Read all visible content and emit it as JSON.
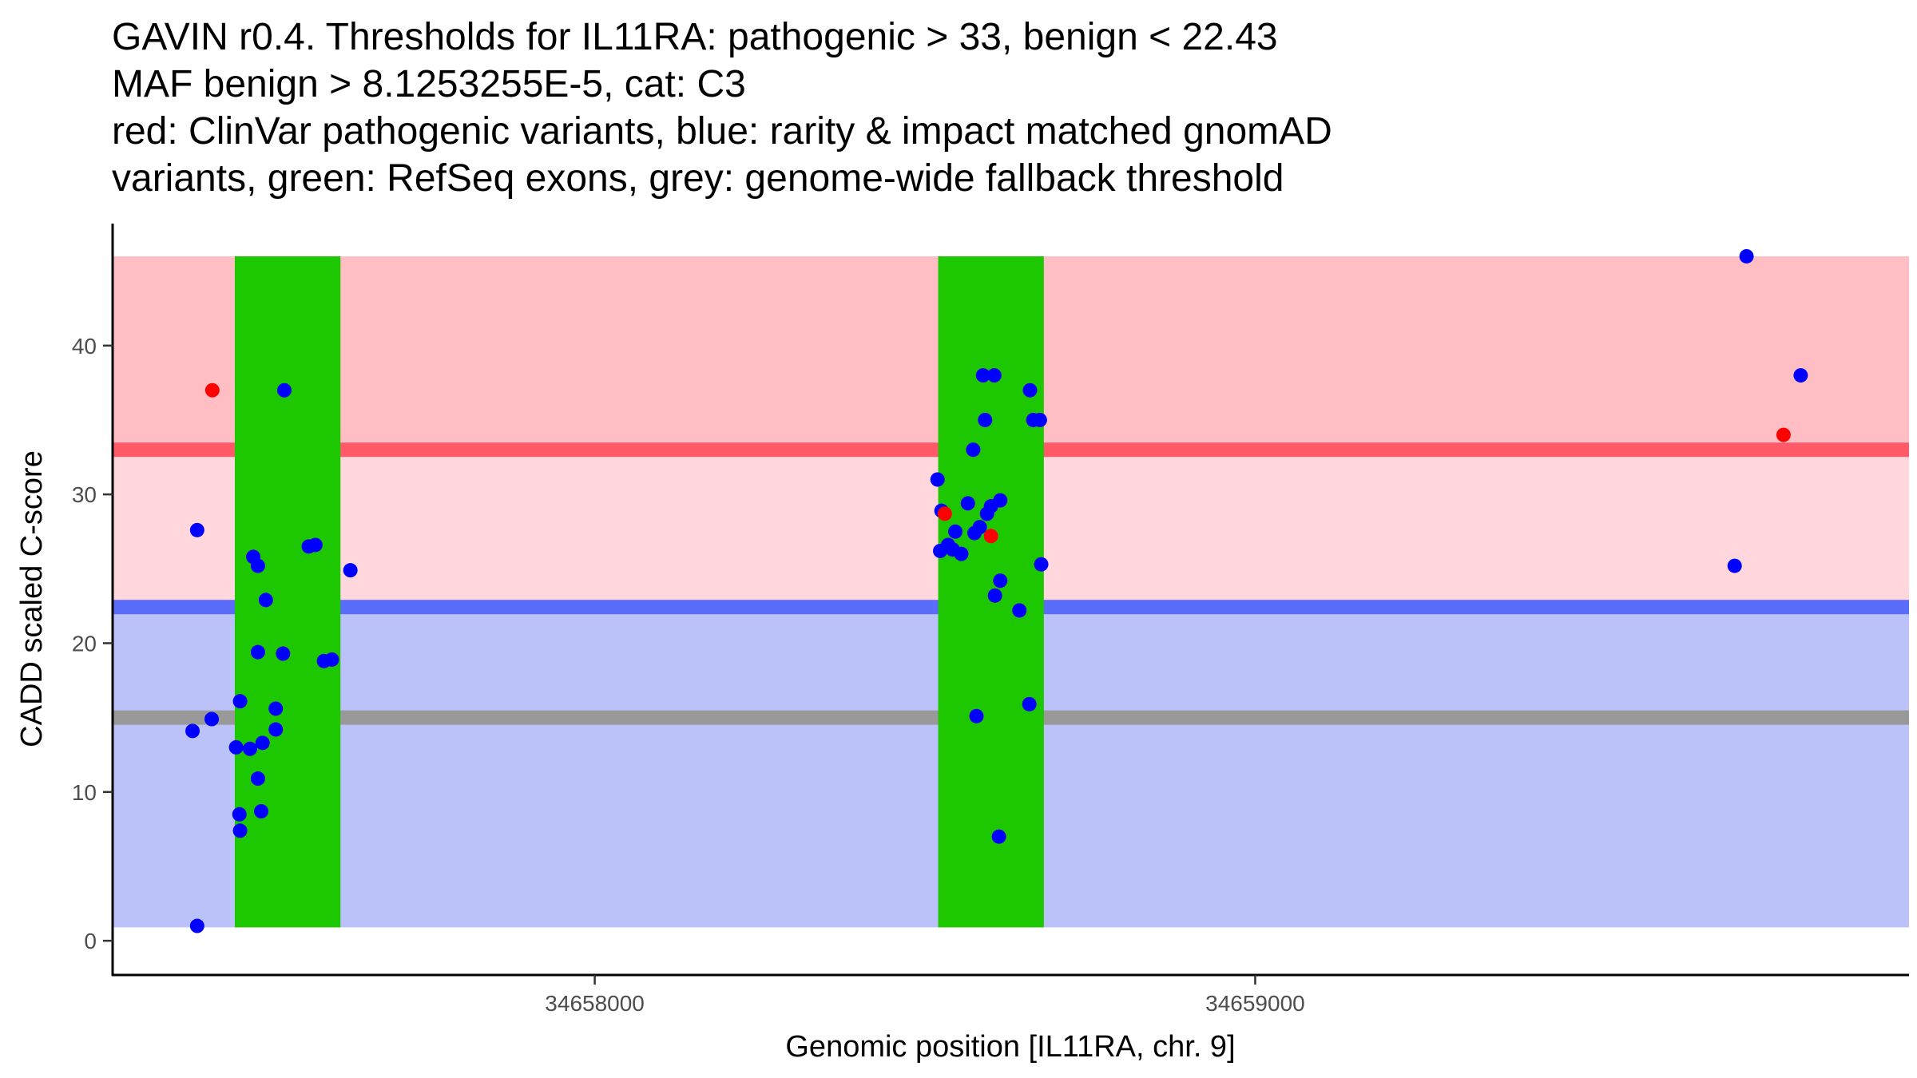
{
  "chart_data": {
    "type": "scatter",
    "title_lines": [
      "GAVIN r0.4. Thresholds for IL11RA: pathogenic > 33, benign < 22.43",
      "MAF benign > 8.1253255E-5, cat: C3",
      "red: ClinVar pathogenic variants, blue: rarity & impact matched gnomAD",
      "variants, green: RefSeq exons, grey: genome-wide fallback threshold"
    ],
    "xlabel": "Genomic position [IL11RA, chr. 9]",
    "ylabel": "CADD scaled C-score",
    "xlim": [
      34657270,
      34659990
    ],
    "ylim": [
      -2.3,
      48.2
    ],
    "x_ticks": [
      {
        "value": 34658000,
        "label": "34658000"
      },
      {
        "value": 34659000,
        "label": "34659000"
      }
    ],
    "y_ticks": [
      {
        "value": 0,
        "label": "0"
      },
      {
        "value": 10,
        "label": "10"
      },
      {
        "value": 20,
        "label": "20"
      },
      {
        "value": 30,
        "label": "30"
      },
      {
        "value": 40,
        "label": "40"
      }
    ],
    "bands": [
      {
        "name": "pathogenic-zone",
        "y0": 33,
        "y1": 46,
        "color": "#ffbec4"
      },
      {
        "name": "gap-zone",
        "y0": 22.43,
        "y1": 33,
        "color": "#ffd7dc"
      },
      {
        "name": "benign-zone",
        "y0": 0.9,
        "y1": 22.43,
        "color": "#bbc2fa"
      }
    ],
    "exons": [
      {
        "x0": 34657455,
        "x1": 34657615,
        "y0": 0.9,
        "y1": 46,
        "color": "#1ec800"
      },
      {
        "x0": 34658520,
        "x1": 34658680,
        "y0": 0.9,
        "y1": 46,
        "color": "#1ec800"
      }
    ],
    "threshold_lines": [
      {
        "name": "pathogenic-threshold",
        "y": 33,
        "color": "#ff5a6a"
      },
      {
        "name": "benign-threshold",
        "y": 22.43,
        "color": "#5a6dfa"
      },
      {
        "name": "fallback-threshold",
        "y": 15,
        "color": "#999999"
      }
    ],
    "series": [
      {
        "name": "gnomAD",
        "color": "#0000ff",
        "points": [
          [
            34657398,
            27.6
          ],
          [
            34657391,
            14.1
          ],
          [
            34657398,
            1.0
          ],
          [
            34657420,
            14.9
          ],
          [
            34657457,
            13.0
          ],
          [
            34657462,
            8.5
          ],
          [
            34657463,
            16.1
          ],
          [
            34657463,
            7.4
          ],
          [
            34657478,
            12.9
          ],
          [
            34657483,
            25.8
          ],
          [
            34657490,
            25.2
          ],
          [
            34657490,
            19.4
          ],
          [
            34657490,
            10.9
          ],
          [
            34657495,
            8.7
          ],
          [
            34657497,
            13.3
          ],
          [
            34657502,
            22.9
          ],
          [
            34657517,
            14.2
          ],
          [
            34657517,
            15.6
          ],
          [
            34657528,
            19.3
          ],
          [
            34657530,
            37.0
          ],
          [
            34657567,
            26.5
          ],
          [
            34657577,
            26.6
          ],
          [
            34657590,
            18.8
          ],
          [
            34657602,
            18.9
          ],
          [
            34657630,
            24.9
          ],
          [
            34658519,
            31.0
          ],
          [
            34658523,
            26.2
          ],
          [
            34658525,
            28.9
          ],
          [
            34658535,
            26.6
          ],
          [
            34658542,
            26.3
          ],
          [
            34658546,
            27.5
          ],
          [
            34658555,
            26.0
          ],
          [
            34658565,
            29.4
          ],
          [
            34658573,
            33.0
          ],
          [
            34658575,
            27.4
          ],
          [
            34658578,
            15.1
          ],
          [
            34658583,
            27.8
          ],
          [
            34658588,
            38.0
          ],
          [
            34658591,
            35.0
          ],
          [
            34658594,
            28.7
          ],
          [
            34658600,
            29.2
          ],
          [
            34658605,
            38.0
          ],
          [
            34658606,
            23.2
          ],
          [
            34658612,
            7.0
          ],
          [
            34658614,
            29.6
          ],
          [
            34658614,
            24.2
          ],
          [
            34658643,
            22.2
          ],
          [
            34658658,
            15.9
          ],
          [
            34658659,
            37.0
          ],
          [
            34658664,
            35.0
          ],
          [
            34658674,
            35.0
          ],
          [
            34658676,
            25.3
          ],
          [
            34659726,
            25.2
          ],
          [
            34659744,
            46.0
          ],
          [
            34659826,
            38.0
          ]
        ]
      },
      {
        "name": "ClinVar pathogenic",
        "color": "#ff0000",
        "points": [
          [
            34657421,
            37.0
          ],
          [
            34658530,
            28.7
          ],
          [
            34658600,
            27.2
          ],
          [
            34659800,
            34.0
          ]
        ]
      }
    ]
  }
}
